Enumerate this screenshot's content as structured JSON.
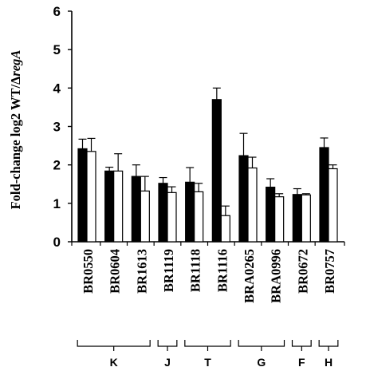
{
  "chart_data": {
    "type": "bar",
    "ylabel_main": "Fold-change log2 WT/",
    "ylabel_delta": "Δ",
    "ylabel_italic": "regA",
    "xlabel": "",
    "ylim": [
      0,
      6
    ],
    "yticks": [
      0,
      1,
      2,
      3,
      4,
      5,
      6
    ],
    "grid": false,
    "legend": "none",
    "categories": [
      "BR0550",
      "BR0604",
      "BR1613",
      "BR1119",
      "BR1118",
      "BR1116",
      "BRA0265",
      "BRA0996",
      "BR0672",
      "BR0757"
    ],
    "series": [
      {
        "fill": "#000000",
        "values": [
          2.42,
          1.84,
          1.7,
          1.52,
          1.55,
          3.7,
          2.24,
          1.42,
          1.23,
          2.45
        ],
        "errors": [
          0.25,
          0.1,
          0.3,
          0.15,
          0.38,
          0.3,
          0.58,
          0.22,
          0.15,
          0.25
        ]
      },
      {
        "fill": "#ffffff",
        "values": [
          2.35,
          1.84,
          1.32,
          1.28,
          1.3,
          0.68,
          1.92,
          1.17,
          1.22,
          1.9
        ],
        "errors": [
          0.34,
          0.45,
          0.38,
          0.15,
          0.22,
          0.25,
          0.28,
          0.08,
          0.03,
          0.1
        ]
      }
    ],
    "groups": [
      {
        "label": "K",
        "first": 0,
        "last": 2
      },
      {
        "label": "J",
        "first": 3,
        "last": 3
      },
      {
        "label": "T",
        "first": 4,
        "last": 5
      },
      {
        "label": "G",
        "first": 6,
        "last": 7
      },
      {
        "label": "F",
        "first": 8,
        "last": 8
      },
      {
        "label": "H",
        "first": 9,
        "last": 9
      }
    ]
  }
}
